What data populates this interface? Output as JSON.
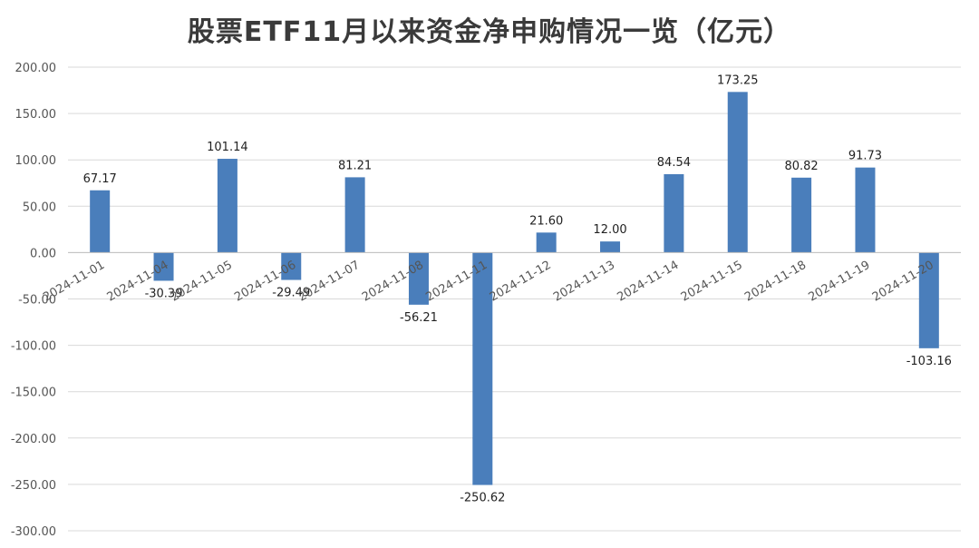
{
  "chart_data": {
    "type": "bar",
    "title": "股票ETF11月以来资金净申购情况一览（亿元）",
    "xlabel": "",
    "ylabel": "",
    "categories": [
      "2024-11-01",
      "2024-11-04",
      "2024-11-05",
      "2024-11-06",
      "2024-11-07",
      "2024-11-08",
      "2024-11-11",
      "2024-11-12",
      "2024-11-13",
      "2024-11-14",
      "2024-11-15",
      "2024-11-18",
      "2024-11-19",
      "2024-11-20"
    ],
    "values": [
      67.17,
      -30.39,
      101.14,
      -29.49,
      81.21,
      -56.21,
      -250.62,
      21.6,
      12.0,
      84.54,
      173.25,
      80.82,
      91.73,
      -103.16
    ],
    "value_labels": [
      "67.17",
      "-30.39",
      "101.14",
      "-29.49",
      "81.21",
      "-56.21",
      "-250.62",
      "21.60",
      "12.00",
      "84.54",
      "173.25",
      "80.82",
      "91.73",
      "-103.16"
    ],
    "yticks": [
      "200.00",
      "150.00",
      "100.00",
      "50.00",
      "0.00",
      "-50.00",
      "-100.00",
      "-150.00",
      "-200.00",
      "-250.00",
      "-300.00"
    ],
    "ylim": [
      -300,
      200
    ],
    "grid": true,
    "legend": "none",
    "bar_color": "#4a7ebb"
  }
}
